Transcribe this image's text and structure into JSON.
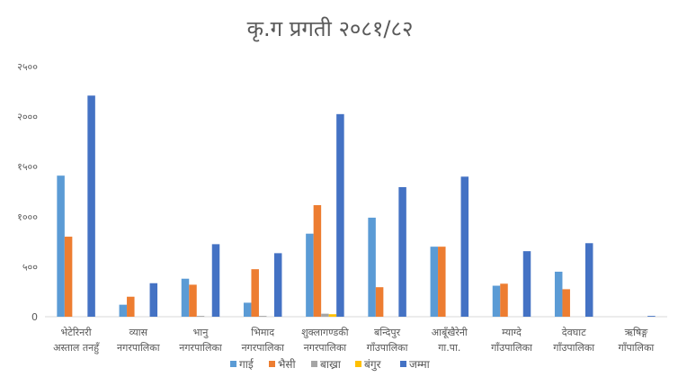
{
  "chart_data": {
    "type": "bar",
    "title": "कृ.ग प्रगती २०८१/८२",
    "xlabel": "",
    "ylabel": "",
    "ylim": [
      0,
      2500
    ],
    "y_ticks": [
      "0",
      "५००",
      "१०००",
      "१५००",
      "२०००",
      "२५००"
    ],
    "categories": [
      [
        "भेटेरिनरी",
        "अस्ताल तनहुँ"
      ],
      [
        "व्यास",
        "नगरपालिका"
      ],
      [
        "भानु",
        "नगरपालिका"
      ],
      [
        "भिमाद",
        "नगरपालिका"
      ],
      [
        "शुक्लागण्डकी",
        "नगरपालिका"
      ],
      [
        "बन्दिपुर",
        "गाँउपालिका"
      ],
      [
        "आबूँखैरेनी",
        "गा.पा."
      ],
      [
        "म्याग्दे",
        "गाँउपालिका"
      ],
      [
        "देवघाट",
        "गाँउपालिका"
      ],
      [
        "ऋषिङ्ग",
        "गाँपालिका"
      ]
    ],
    "series": [
      {
        "name": "गाई",
        "color": "#5B9BD5",
        "values": [
          1410,
          120,
          380,
          140,
          830,
          990,
          700,
          310,
          450,
          0
        ]
      },
      {
        "name": "भैसी",
        "color": "#ED7D31",
        "values": [
          800,
          200,
          320,
          475,
          1115,
          295,
          700,
          330,
          275,
          0
        ]
      },
      {
        "name": "बाख्रा",
        "color": "#A5A5A5",
        "values": [
          0,
          0,
          8,
          8,
          30,
          0,
          0,
          0,
          0,
          0
        ]
      },
      {
        "name": "बंगुर",
        "color": "#FFC000",
        "values": [
          0,
          0,
          0,
          0,
          25,
          0,
          0,
          0,
          0,
          0
        ]
      },
      {
        "name": "जम्मा",
        "color": "#4472C4",
        "values": [
          2210,
          335,
          725,
          635,
          2025,
          1295,
          1400,
          655,
          735,
          8
        ]
      }
    ],
    "grid": false,
    "legend_position": "bottom"
  }
}
